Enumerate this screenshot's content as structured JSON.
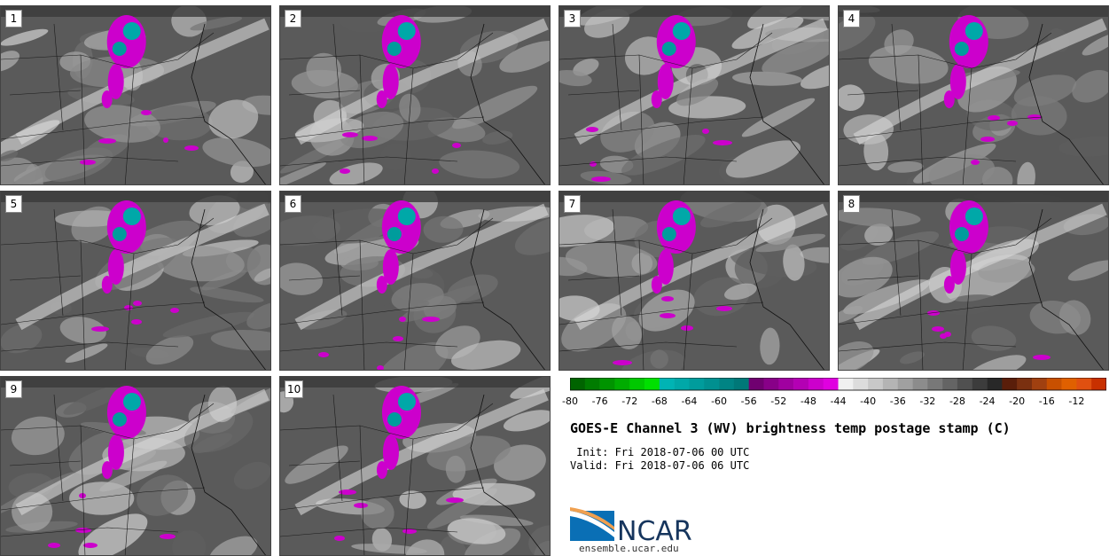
{
  "panels": [
    {
      "label": "1"
    },
    {
      "label": "2"
    },
    {
      "label": "3"
    },
    {
      "label": "4"
    },
    {
      "label": "5"
    },
    {
      "label": "6"
    },
    {
      "label": "7"
    },
    {
      "label": "8"
    },
    {
      "label": "9"
    },
    {
      "label": "10"
    }
  ],
  "colorbar": {
    "tick_labels": [
      "-80",
      "-76",
      "-72",
      "-68",
      "-64",
      "-60",
      "-56",
      "-52",
      "-48",
      "-44",
      "-40",
      "-36",
      "-32",
      "-28",
      "-24",
      "-20",
      "-16",
      "-12"
    ],
    "colors": [
      "#006400",
      "#007c00",
      "#009400",
      "#00ac00",
      "#00c800",
      "#00e000",
      "#00b4b4",
      "#00a8a8",
      "#009c9c",
      "#009090",
      "#008484",
      "#007878",
      "#700070",
      "#880088",
      "#a000a0",
      "#b400b4",
      "#cc00cc",
      "#e000e0",
      "#f0f0f0",
      "#dcdcdc",
      "#c8c8c8",
      "#b4b4b4",
      "#a0a0a0",
      "#8c8c8c",
      "#787878",
      "#646464",
      "#505050",
      "#3c3c3c",
      "#282828",
      "#5a1e0a",
      "#7a3010",
      "#a04010",
      "#c85000",
      "#e06000",
      "#e05010",
      "#c83000"
    ]
  },
  "title": "GOES-E Channel 3 (WV) brightness temp postage stamp (C)",
  "init": " Init: Fri 2018-07-06 00 UTC",
  "valid": "Valid: Fri 2018-07-06 06 UTC",
  "logo_text": "NCAR",
  "site": "ensemble.ucar.edu"
}
